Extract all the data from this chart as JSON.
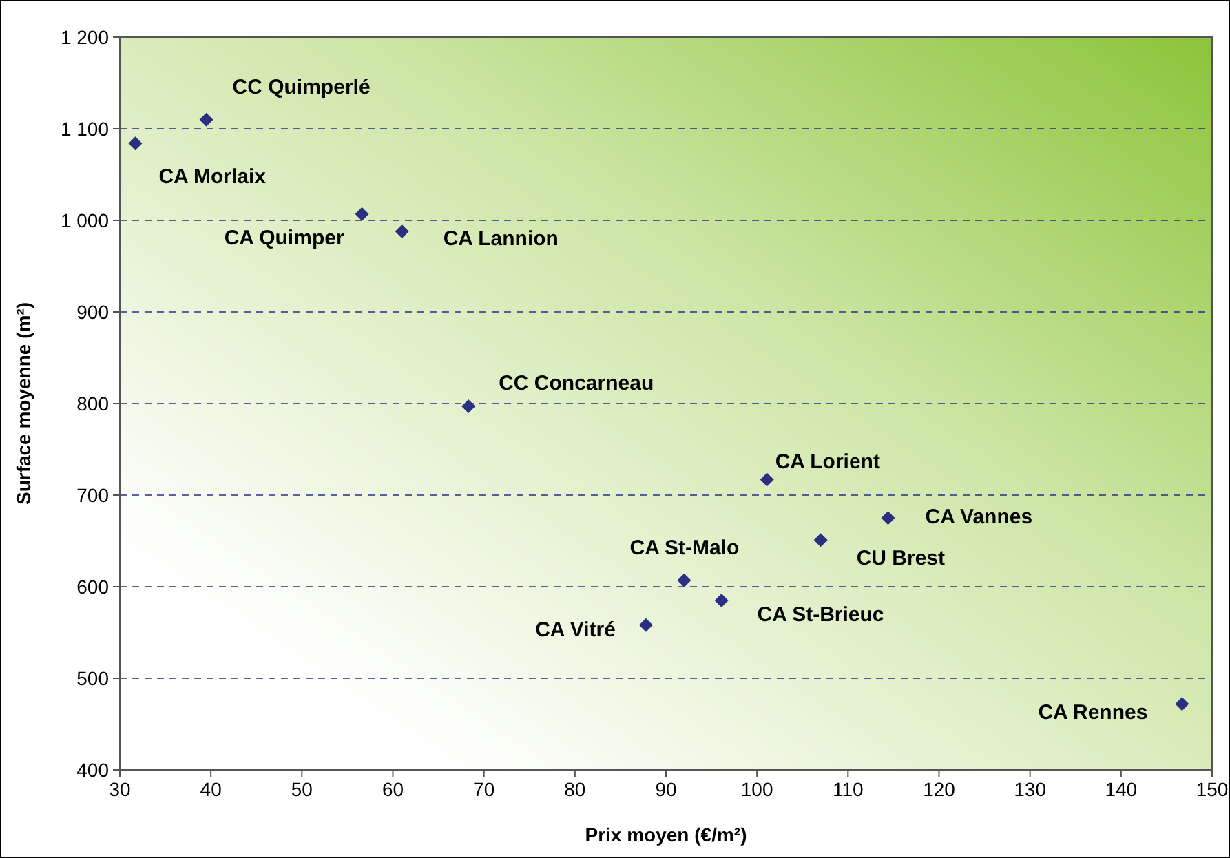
{
  "chart_data": {
    "type": "scatter",
    "xlabel": "Prix moyen (€/m²)",
    "ylabel": "Surface moyenne (m²)",
    "x": [
      31.7,
      39.5,
      56.6,
      61.0,
      68.3,
      101.1,
      107.0,
      114.4,
      92.0,
      96.1,
      87.8,
      146.7
    ],
    "series": [
      {
        "color": "#2b2f7f",
        "values": [
          1084,
          1110,
          1007,
          988,
          797,
          717,
          651,
          675,
          607,
          585,
          558,
          472
        ]
      }
    ],
    "xlim": [
      30,
      150
    ],
    "xticks": [
      30,
      40,
      50,
      60,
      70,
      80,
      90,
      100,
      110,
      120,
      130,
      140,
      150
    ],
    "ylim": [
      400,
      1200
    ],
    "yticks": [
      {
        "value": 400,
        "label": "400"
      },
      {
        "value": 500,
        "label": "500"
      },
      {
        "value": 600,
        "label": "600"
      },
      {
        "value": 700,
        "label": "700"
      },
      {
        "value": 800,
        "label": "800"
      },
      {
        "value": 900,
        "label": "900"
      },
      {
        "value": 1000,
        "label": "1 000"
      },
      {
        "value": 1100,
        "label": "1 100"
      },
      {
        "value": 1200,
        "label": "1 200"
      }
    ],
    "grid": "y",
    "marker": "diamond",
    "annotations": [
      {
        "text": "CA Morlaix",
        "x": 31.7,
        "y": 1084
      },
      {
        "text": "CC Quimperlé",
        "x": 39.5,
        "y": 1110
      },
      {
        "text": "CA Quimper",
        "x": 56.6,
        "y": 1007
      },
      {
        "text": "CA Lannion",
        "x": 61.0,
        "y": 988
      },
      {
        "text": "CC Concarneau",
        "x": 68.3,
        "y": 797
      },
      {
        "text": "CA Lorient",
        "x": 101.1,
        "y": 717
      },
      {
        "text": "CU Brest",
        "x": 107.0,
        "y": 651
      },
      {
        "text": "CA Vannes",
        "x": 114.4,
        "y": 675
      },
      {
        "text": "CA St-Malo",
        "x": 92.0,
        "y": 607
      },
      {
        "text": "CA St-Brieuc",
        "x": 96.1,
        "y": 585
      },
      {
        "text": "CA Vitré",
        "x": 87.8,
        "y": 558
      },
      {
        "text": "CA Rennes",
        "x": 146.7,
        "y": 472
      }
    ]
  }
}
